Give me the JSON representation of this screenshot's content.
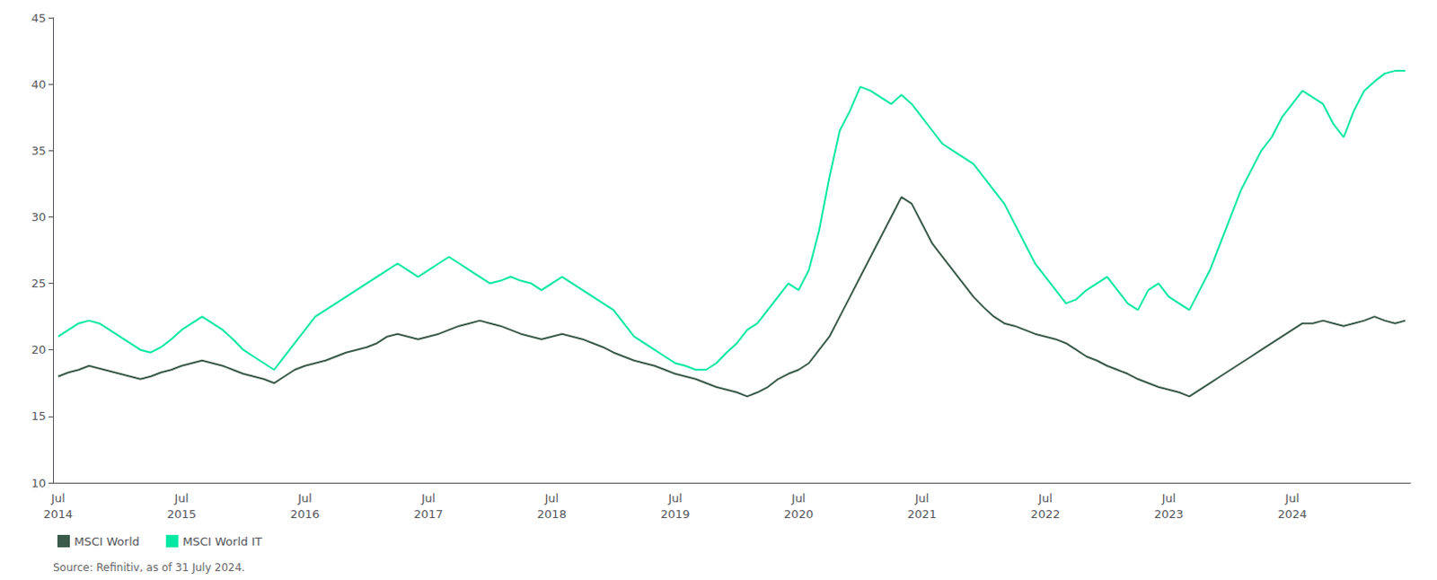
{
  "chart_data": {
    "type": "line",
    "categories": [
      "Jul\n2014",
      null,
      null,
      null,
      null,
      null,
      null,
      null,
      null,
      null,
      null,
      null,
      "Jul\n2015",
      null,
      null,
      null,
      null,
      null,
      null,
      null,
      null,
      null,
      null,
      null,
      "Jul\n2016",
      null,
      null,
      null,
      null,
      null,
      null,
      null,
      null,
      null,
      null,
      null,
      "Jul\n2017",
      null,
      null,
      null,
      null,
      null,
      null,
      null,
      null,
      null,
      null,
      null,
      "Jul\n2018",
      null,
      null,
      null,
      null,
      null,
      null,
      null,
      null,
      null,
      null,
      null,
      "Jul\n2019",
      null,
      null,
      null,
      null,
      null,
      null,
      null,
      null,
      null,
      null,
      null,
      "Jul\n2020",
      null,
      null,
      null,
      null,
      null,
      null,
      null,
      null,
      null,
      null,
      null,
      "Jul\n2021",
      null,
      null,
      null,
      null,
      null,
      null,
      null,
      null,
      null,
      null,
      null,
      "Jul\n2022",
      null,
      null,
      null,
      null,
      null,
      null,
      null,
      null,
      null,
      null,
      null,
      "Jul\n2023",
      null,
      null,
      null,
      null,
      null,
      null,
      null,
      null,
      null,
      null,
      null,
      "Jul\n2024",
      null,
      null,
      null,
      null,
      null,
      null,
      null,
      null,
      null,
      null,
      null
    ],
    "series": [
      {
        "name": "MSCI World",
        "color": "#3a5a4a",
        "values": [
          18.0,
          18.3,
          18.5,
          18.8,
          18.6,
          18.4,
          18.2,
          18.0,
          17.8,
          18.0,
          18.3,
          18.5,
          18.8,
          19.0,
          19.2,
          19.0,
          18.8,
          18.5,
          18.2,
          18.0,
          17.8,
          17.5,
          18.0,
          18.5,
          18.8,
          19.0,
          19.2,
          19.5,
          19.8,
          20.0,
          20.2,
          20.5,
          21.0,
          21.2,
          21.0,
          20.8,
          21.0,
          21.2,
          21.5,
          21.8,
          22.0,
          22.2,
          22.0,
          21.8,
          21.5,
          21.2,
          21.0,
          20.8,
          21.0,
          21.2,
          21.0,
          20.8,
          20.5,
          20.2,
          19.8,
          19.5,
          19.2,
          19.0,
          18.8,
          18.5,
          18.2,
          18.0,
          17.8,
          17.5,
          17.2,
          17.0,
          16.8,
          16.5,
          16.8,
          17.2,
          17.8,
          18.2,
          18.5,
          19.0,
          20.0,
          21.0,
          22.5,
          24.0,
          25.5,
          27.0,
          28.5,
          30.0,
          31.5,
          31.0,
          29.5,
          28.0,
          27.0,
          26.0,
          25.0,
          24.0,
          23.2,
          22.5,
          22.0,
          21.8,
          21.5,
          21.2,
          21.0,
          20.8,
          20.5,
          20.0,
          19.5,
          19.2,
          18.8,
          18.5,
          18.2,
          17.8,
          17.5,
          17.2,
          17.0,
          16.8,
          16.5,
          17.0,
          17.5,
          18.0,
          18.5,
          19.0,
          19.5,
          20.0,
          20.5,
          21.0,
          21.5,
          22.0,
          22.0,
          22.2,
          22.0,
          21.8,
          22.0,
          22.2,
          22.5,
          22.2,
          22.0,
          22.2
        ]
      },
      {
        "name": "MSCI World IT",
        "color": "#00e8a2",
        "values": [
          21.0,
          21.5,
          22.0,
          22.2,
          22.0,
          21.5,
          21.0,
          20.5,
          20.0,
          19.8,
          20.2,
          20.8,
          21.5,
          22.0,
          22.5,
          22.0,
          21.5,
          20.8,
          20.0,
          19.5,
          19.0,
          18.5,
          19.5,
          20.5,
          21.5,
          22.5,
          23.0,
          23.5,
          24.0,
          24.5,
          25.0,
          25.5,
          26.0,
          26.5,
          26.0,
          25.5,
          26.0,
          26.5,
          27.0,
          26.5,
          26.0,
          25.5,
          25.0,
          25.2,
          25.5,
          25.2,
          25.0,
          24.5,
          25.0,
          25.5,
          25.0,
          24.5,
          24.0,
          23.5,
          23.0,
          22.0,
          21.0,
          20.5,
          20.0,
          19.5,
          19.0,
          18.8,
          18.5,
          18.5,
          19.0,
          19.8,
          20.5,
          21.5,
          22.0,
          23.0,
          24.0,
          25.0,
          24.5,
          26.0,
          29.0,
          33.0,
          36.5,
          38.0,
          39.8,
          39.5,
          39.0,
          38.5,
          39.2,
          38.5,
          37.5,
          36.5,
          35.5,
          35.0,
          34.5,
          34.0,
          33.0,
          32.0,
          31.0,
          29.5,
          28.0,
          26.5,
          25.5,
          24.5,
          23.5,
          23.8,
          24.5,
          25.0,
          25.5,
          24.5,
          23.5,
          23.0,
          24.5,
          25.0,
          24.0,
          23.5,
          23.0,
          24.5,
          26.0,
          28.0,
          30.0,
          32.0,
          33.5,
          35.0,
          36.0,
          37.5,
          38.5,
          39.5,
          39.0,
          38.5,
          37.0,
          36.0,
          38.0,
          39.5,
          40.2,
          40.8,
          41.0,
          41.0
        ]
      }
    ],
    "ylim": [
      10,
      45
    ],
    "yticks": [
      10,
      15,
      20,
      25,
      30,
      35,
      40,
      45
    ],
    "grid": false,
    "legend": "bottom",
    "annotations": [
      "Source: Refinitiv, as of 31 July 2024."
    ]
  }
}
